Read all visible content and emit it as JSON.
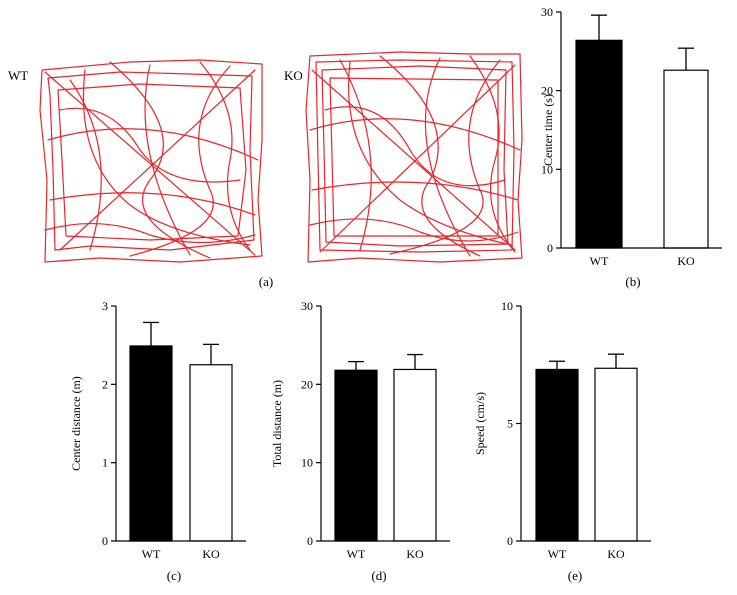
{
  "panel_a": {
    "label": "(a)",
    "groups": [
      "WT",
      "KO"
    ]
  },
  "chart_data": [
    {
      "type": "bar",
      "panel": "(b)",
      "categories": [
        "WT",
        "KO"
      ],
      "values": [
        26.4,
        22.6
      ],
      "errors": [
        3.2,
        2.8
      ],
      "colors": [
        "#000000",
        "#ffffff"
      ],
      "ylabel": "Center time (s)",
      "ylim": [
        0,
        30
      ],
      "yticks": [
        0,
        10,
        20,
        30
      ]
    },
    {
      "type": "bar",
      "panel": "(c)",
      "categories": [
        "WT",
        "KO"
      ],
      "values": [
        2.49,
        2.25
      ],
      "errors": [
        0.3,
        0.26
      ],
      "colors": [
        "#000000",
        "#ffffff"
      ],
      "ylabel": "Center distance (m)",
      "ylim": [
        0,
        3
      ],
      "yticks": [
        0,
        1,
        2,
        3
      ]
    },
    {
      "type": "bar",
      "panel": "(d)",
      "categories": [
        "WT",
        "KO"
      ],
      "values": [
        21.8,
        21.9
      ],
      "errors": [
        1.1,
        1.9
      ],
      "colors": [
        "#000000",
        "#ffffff"
      ],
      "ylabel": "Total distance (m)",
      "ylim": [
        0,
        30
      ],
      "yticks": [
        0,
        10,
        20,
        30
      ]
    },
    {
      "type": "bar",
      "panel": "(e)",
      "categories": [
        "WT",
        "KO"
      ],
      "values": [
        7.3,
        7.35
      ],
      "errors": [
        0.35,
        0.6
      ],
      "colors": [
        "#000000",
        "#ffffff"
      ],
      "ylabel": "Speed (cm/s)",
      "ylim": [
        0,
        10
      ],
      "yticks": [
        0,
        5,
        10
      ]
    }
  ]
}
